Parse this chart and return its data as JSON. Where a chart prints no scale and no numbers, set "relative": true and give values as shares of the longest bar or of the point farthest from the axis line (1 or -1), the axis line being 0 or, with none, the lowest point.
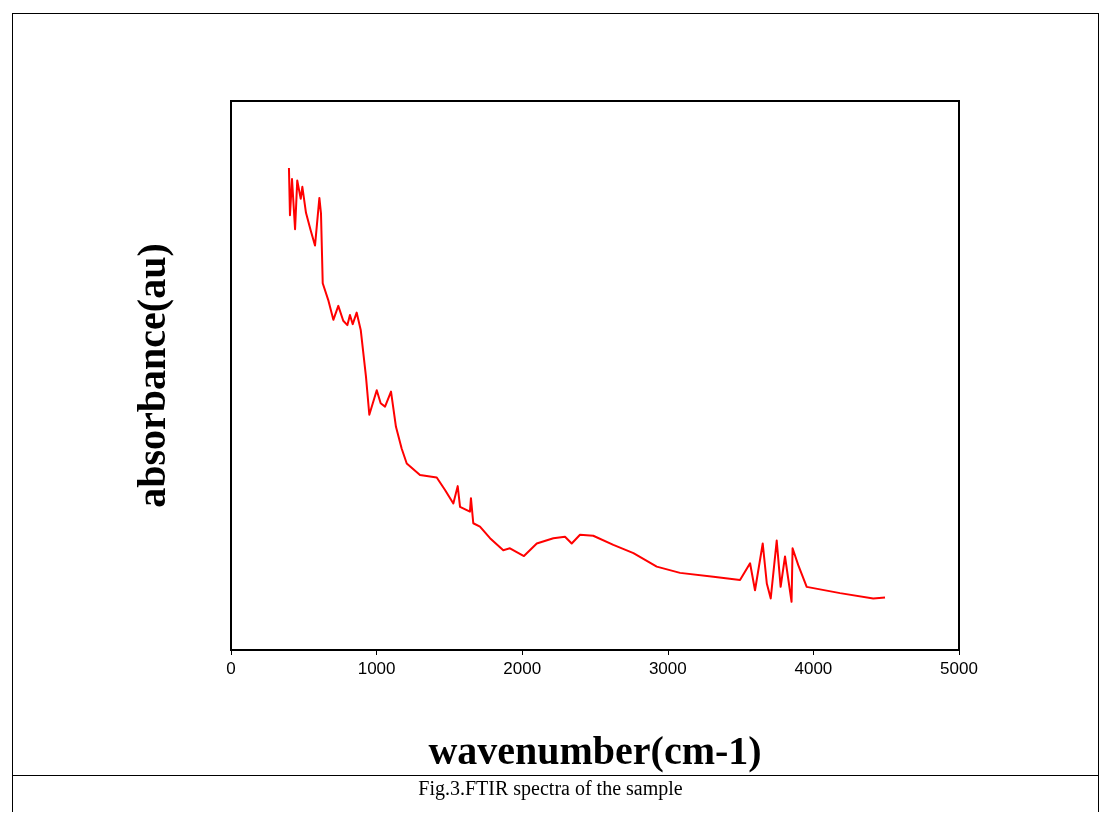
{
  "chart_data": {
    "type": "line",
    "relative": true,
    "xlabel": "wavenumber(cm-1)",
    "ylabel": "absorbance(au)",
    "annotations": [
      "Fig.3.FTIR spectra of the sample"
    ],
    "xlim": [
      0,
      5000
    ],
    "xticks": [
      0,
      1000,
      2000,
      3000,
      4000,
      5000
    ],
    "grid": false,
    "marker": "none",
    "line_style": "solid",
    "series": [
      {
        "color": "#ff0000",
        "x": [
          398,
          405,
          419,
          440,
          455,
          479,
          490,
          515,
          547,
          577,
          607,
          618,
          630,
          668,
          703,
          737,
          771,
          799,
          817,
          836,
          863,
          891,
          927,
          950,
          1001,
          1028,
          1058,
          1099,
          1133,
          1172,
          1207,
          1298,
          1413,
          1470,
          1527,
          1557,
          1573,
          1641,
          1648,
          1664,
          1710,
          1779,
          1870,
          1916,
          2012,
          2100,
          2214,
          2294,
          2340,
          2397,
          2488,
          2626,
          2764,
          2924,
          3084,
          3313,
          3496,
          3565,
          3599,
          3652,
          3680,
          3707,
          3748,
          3775,
          3805,
          3850,
          3857,
          3896,
          3954,
          4183,
          4411,
          4492
        ],
        "values": [
          1,
          0.902,
          0.977,
          0.873,
          0.974,
          0.936,
          0.961,
          0.907,
          0.871,
          0.839,
          0.938,
          0.906,
          0.761,
          0.726,
          0.685,
          0.714,
          0.683,
          0.674,
          0.695,
          0.676,
          0.7,
          0.664,
          0.567,
          0.488,
          0.539,
          0.512,
          0.505,
          0.536,
          0.463,
          0.418,
          0.387,
          0.363,
          0.358,
          0.332,
          0.304,
          0.34,
          0.297,
          0.287,
          0.315,
          0.263,
          0.256,
          0.232,
          0.207,
          0.211,
          0.195,
          0.221,
          0.232,
          0.235,
          0.221,
          0.239,
          0.237,
          0.218,
          0.201,
          0.173,
          0.16,
          0.152,
          0.145,
          0.18,
          0.124,
          0.221,
          0.138,
          0.107,
          0.227,
          0.131,
          0.194,
          0.1,
          0.211,
          0.176,
          0.131,
          0.118,
          0.107,
          0.109
        ]
      }
    ]
  }
}
